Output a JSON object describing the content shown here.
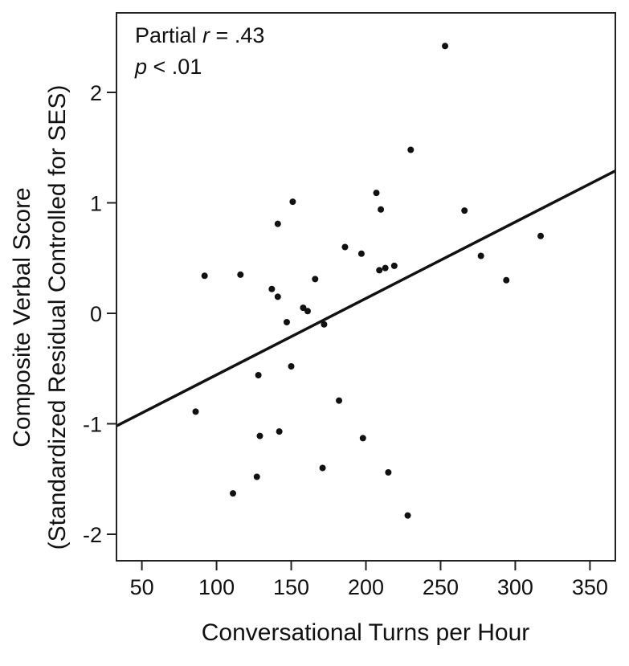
{
  "chart_data": {
    "type": "scatter",
    "xlabel": "Conversational Turns per Hour",
    "ylabel_line1": "Composite Verbal Score",
    "ylabel_line2": "(Standardized Residual Controlled for SES)",
    "xlim": [
      33,
      367
    ],
    "ylim": [
      -2.24,
      2.72
    ],
    "x_ticks": [
      50,
      100,
      150,
      200,
      250,
      300,
      350
    ],
    "x_tick_labels": [
      "50",
      "100",
      "150",
      "200",
      "250",
      "300",
      "350"
    ],
    "y_ticks": [
      2,
      1,
      0,
      -1,
      -2
    ],
    "y_tick_labels": [
      "2",
      "1",
      "0",
      "-1",
      "-2"
    ],
    "grid": false,
    "annotation": {
      "line1_prefix": "Partial ",
      "line1_var": "r",
      "line1_suffix": " = .43",
      "line2_var": "p",
      "line2_suffix": " < .01"
    },
    "regression": {
      "x": [
        33,
        367
      ],
      "y": [
        -1.02,
        1.29
      ]
    },
    "points": [
      {
        "x": 86,
        "y": -0.89
      },
      {
        "x": 92,
        "y": 0.34
      },
      {
        "x": 111,
        "y": -1.63
      },
      {
        "x": 116,
        "y": 0.35
      },
      {
        "x": 127,
        "y": -1.48
      },
      {
        "x": 128,
        "y": -0.56
      },
      {
        "x": 129,
        "y": -1.11
      },
      {
        "x": 137,
        "y": 0.22
      },
      {
        "x": 141,
        "y": 0.15
      },
      {
        "x": 141,
        "y": 0.81
      },
      {
        "x": 142,
        "y": -1.07
      },
      {
        "x": 147,
        "y": -0.08
      },
      {
        "x": 150,
        "y": -0.48
      },
      {
        "x": 151,
        "y": 1.01
      },
      {
        "x": 158,
        "y": 0.05
      },
      {
        "x": 161,
        "y": 0.02
      },
      {
        "x": 166,
        "y": 0.31
      },
      {
        "x": 171,
        "y": -1.4
      },
      {
        "x": 172,
        "y": -0.1
      },
      {
        "x": 182,
        "y": -0.79
      },
      {
        "x": 186,
        "y": 0.6
      },
      {
        "x": 197,
        "y": 0.54
      },
      {
        "x": 198,
        "y": -1.13
      },
      {
        "x": 207,
        "y": 1.09
      },
      {
        "x": 209,
        "y": 0.39
      },
      {
        "x": 210,
        "y": 0.94
      },
      {
        "x": 213,
        "y": 0.41
      },
      {
        "x": 215,
        "y": -1.44
      },
      {
        "x": 219,
        "y": 0.43
      },
      {
        "x": 228,
        "y": -1.83
      },
      {
        "x": 230,
        "y": 1.48
      },
      {
        "x": 253,
        "y": 2.42
      },
      {
        "x": 266,
        "y": 0.93
      },
      {
        "x": 277,
        "y": 0.52
      },
      {
        "x": 294,
        "y": 0.3
      },
      {
        "x": 317,
        "y": 0.7
      }
    ]
  }
}
